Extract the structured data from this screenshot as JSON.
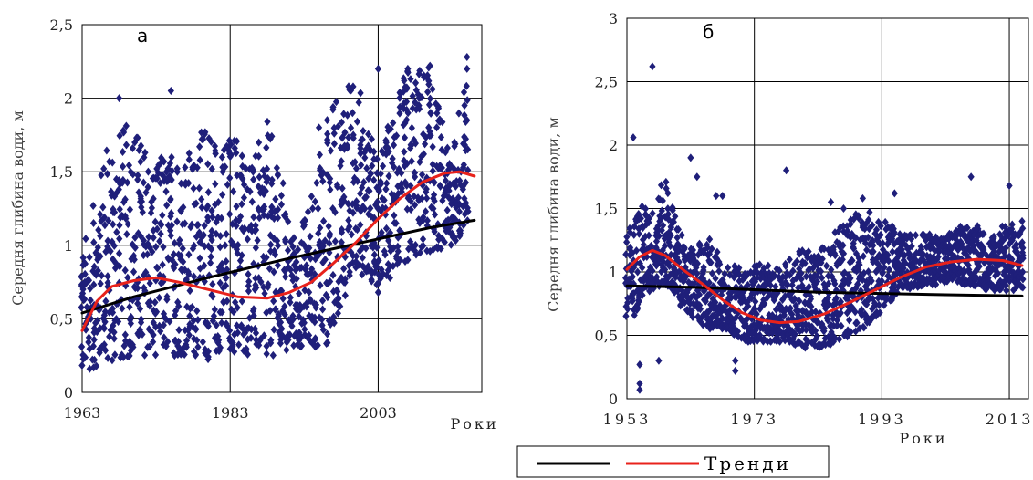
{
  "chart_data": [
    {
      "type": "scatter",
      "panel_label": "а",
      "ylabel": "Середня глибина води, м",
      "x_axis_text": "Роки",
      "xlim": [
        1963,
        2017
      ],
      "ylim": [
        0,
        2.5
      ],
      "xticks": [
        1963,
        1983,
        2003
      ],
      "xtick_labels": [
        "1963",
        "1983",
        "2003"
      ],
      "yticks": [
        0,
        0.5,
        1,
        1.5,
        2,
        2.5
      ],
      "ytick_labels": [
        "0",
        "0,5",
        "1",
        "1,5",
        "2",
        "2,5"
      ],
      "grid": true,
      "points_color": "#1f1f7a",
      "scatter_profile": [
        {
          "x": 1963,
          "low": 0.12,
          "high": 1.0
        },
        {
          "x": 1964,
          "low": 0.15,
          "high": 1.15
        },
        {
          "x": 1966,
          "low": 0.2,
          "high": 1.65
        },
        {
          "x": 1968,
          "low": 0.2,
          "high": 1.8
        },
        {
          "x": 1970,
          "low": 0.25,
          "high": 1.85
        },
        {
          "x": 1972,
          "low": 0.25,
          "high": 1.65
        },
        {
          "x": 1974,
          "low": 0.25,
          "high": 1.6
        },
        {
          "x": 1976,
          "low": 0.25,
          "high": 1.7
        },
        {
          "x": 1978,
          "low": 0.25,
          "high": 1.65
        },
        {
          "x": 1980,
          "low": 0.22,
          "high": 1.9
        },
        {
          "x": 1982,
          "low": 0.3,
          "high": 1.7
        },
        {
          "x": 1984,
          "low": 0.25,
          "high": 1.85
        },
        {
          "x": 1986,
          "low": 0.25,
          "high": 1.55
        },
        {
          "x": 1988,
          "low": 0.25,
          "high": 1.85
        },
        {
          "x": 1990,
          "low": 0.25,
          "high": 1.45
        },
        {
          "x": 1992,
          "low": 0.3,
          "high": 1.0
        },
        {
          "x": 1994,
          "low": 0.3,
          "high": 1.4
        },
        {
          "x": 1996,
          "low": 0.32,
          "high": 1.9
        },
        {
          "x": 2000,
          "low": 0.85,
          "high": 2.15
        },
        {
          "x": 2003,
          "low": 0.7,
          "high": 1.6
        },
        {
          "x": 2007,
          "low": 0.9,
          "high": 2.22
        },
        {
          "x": 2010,
          "low": 0.95,
          "high": 2.22
        },
        {
          "x": 2013,
          "low": 1.0,
          "high": 1.55
        },
        {
          "x": 2015,
          "low": 1.1,
          "high": 2.3
        }
      ],
      "scatter_extra": [
        [
          1975,
          2.05
        ],
        [
          1968,
          2.0
        ],
        [
          1999,
          2.08
        ],
        [
          2003,
          2.2
        ],
        [
          2007,
          2.2
        ],
        [
          2010,
          2.22
        ],
        [
          2015,
          2.28
        ],
        [
          2015,
          2.2
        ],
        [
          2003,
          0.68
        ],
        [
          2007,
          0.9
        ],
        [
          1995,
          1.8
        ]
      ],
      "series": [
        {
          "kind": "linear-trend",
          "color": "#000000",
          "x": [
            1963,
            1970,
            1980,
            1990,
            2000,
            2010,
            2016
          ],
          "y": [
            0.54,
            0.65,
            0.78,
            0.9,
            1.01,
            1.12,
            1.17
          ]
        },
        {
          "kind": "polynomial-trend",
          "color": "#e8221b",
          "x": [
            1963,
            1965,
            1967,
            1970,
            1973,
            1976,
            1980,
            1984,
            1988,
            1991,
            1994,
            1997,
            2000,
            2003,
            2006,
            2009,
            2012,
            2014,
            2016
          ],
          "y": [
            0.42,
            0.62,
            0.72,
            0.76,
            0.78,
            0.75,
            0.7,
            0.65,
            0.64,
            0.68,
            0.75,
            0.88,
            1.02,
            1.18,
            1.32,
            1.43,
            1.49,
            1.5,
            1.47
          ]
        }
      ]
    },
    {
      "type": "scatter",
      "panel_label": "б",
      "ylabel": "Середня глибина води, м",
      "x_axis_text": "Роки",
      "xlim": [
        1953,
        2016
      ],
      "ylim": [
        0,
        3
      ],
      "xticks": [
        1953,
        1973,
        1993,
        2013
      ],
      "xtick_labels": [
        "1953",
        "1973",
        "1993",
        "2013"
      ],
      "yticks": [
        0,
        0.5,
        1,
        1.5,
        2,
        2.5,
        3
      ],
      "ytick_labels": [
        "0",
        "0,5",
        "1",
        "1,5",
        "2",
        "2,5",
        "3"
      ],
      "grid": true,
      "points_color": "#1f1f7a",
      "scatter_profile": [
        {
          "x": 1953,
          "low": 0.55,
          "high": 1.3
        },
        {
          "x": 1955,
          "low": 0.75,
          "high": 1.55
        },
        {
          "x": 1957,
          "low": 0.85,
          "high": 1.5
        },
        {
          "x": 1959,
          "low": 0.9,
          "high": 1.75
        },
        {
          "x": 1962,
          "low": 0.7,
          "high": 1.2
        },
        {
          "x": 1964,
          "low": 0.6,
          "high": 1.2
        },
        {
          "x": 1966,
          "low": 0.55,
          "high": 1.3
        },
        {
          "x": 1968,
          "low": 0.55,
          "high": 1.05
        },
        {
          "x": 1970,
          "low": 0.5,
          "high": 1.05
        },
        {
          "x": 1972,
          "low": 0.45,
          "high": 1.0
        },
        {
          "x": 1974,
          "low": 0.45,
          "high": 1.1
        },
        {
          "x": 1976,
          "low": 0.45,
          "high": 1.0
        },
        {
          "x": 1978,
          "low": 0.45,
          "high": 1.1
        },
        {
          "x": 1980,
          "low": 0.4,
          "high": 1.2
        },
        {
          "x": 1982,
          "low": 0.4,
          "high": 1.15
        },
        {
          "x": 1984,
          "low": 0.4,
          "high": 1.25
        },
        {
          "x": 1986,
          "low": 0.45,
          "high": 1.35
        },
        {
          "x": 1988,
          "low": 0.5,
          "high": 1.45
        },
        {
          "x": 1990,
          "low": 0.55,
          "high": 1.5
        },
        {
          "x": 1993,
          "low": 0.7,
          "high": 1.45
        },
        {
          "x": 1996,
          "low": 0.85,
          "high": 1.3
        },
        {
          "x": 2000,
          "low": 0.9,
          "high": 1.3
        },
        {
          "x": 2003,
          "low": 0.9,
          "high": 1.3
        },
        {
          "x": 2007,
          "low": 0.9,
          "high": 1.4
        },
        {
          "x": 2010,
          "low": 0.85,
          "high": 1.3
        },
        {
          "x": 2013,
          "low": 0.85,
          "high": 1.4
        },
        {
          "x": 2015,
          "low": 0.85,
          "high": 1.35
        }
      ],
      "scatter_extra": [
        [
          1957,
          2.62
        ],
        [
          1954,
          2.06
        ],
        [
          1955,
          0.27
        ],
        [
          1955,
          0.12
        ],
        [
          1955,
          0.07
        ],
        [
          1958,
          0.3
        ],
        [
          1963,
          1.9
        ],
        [
          1964,
          1.75
        ],
        [
          1967,
          1.6
        ],
        [
          1968,
          1.6
        ],
        [
          1970,
          0.3
        ],
        [
          1970,
          0.22
        ],
        [
          1978,
          1.8
        ],
        [
          1985,
          1.55
        ],
        [
          1987,
          1.5
        ],
        [
          1990,
          1.58
        ],
        [
          1995,
          1.62
        ],
        [
          2007,
          1.75
        ],
        [
          2013,
          1.68
        ],
        [
          2015,
          1.4
        ]
      ],
      "series": [
        {
          "kind": "linear-trend",
          "color": "#000000",
          "x": [
            1953,
            1963,
            1973,
            1983,
            1993,
            2003,
            2015
          ],
          "y": [
            0.89,
            0.88,
            0.86,
            0.84,
            0.83,
            0.82,
            0.81
          ]
        },
        {
          "kind": "polynomial-trend",
          "color": "#e8221b",
          "x": [
            1953,
            1955,
            1957,
            1959,
            1962,
            1965,
            1968,
            1971,
            1974,
            1977,
            1980,
            1984,
            1988,
            1992,
            1996,
            2000,
            2004,
            2008,
            2012,
            2015
          ],
          "y": [
            1.02,
            1.12,
            1.17,
            1.13,
            1.01,
            0.9,
            0.78,
            0.68,
            0.62,
            0.6,
            0.61,
            0.67,
            0.76,
            0.86,
            0.96,
            1.04,
            1.08,
            1.1,
            1.09,
            1.05
          ]
        }
      ]
    }
  ],
  "legend": {
    "entries": [
      {
        "label": "",
        "color": "#000000"
      },
      {
        "label": "Тренди",
        "color": "#e8221b"
      }
    ]
  }
}
